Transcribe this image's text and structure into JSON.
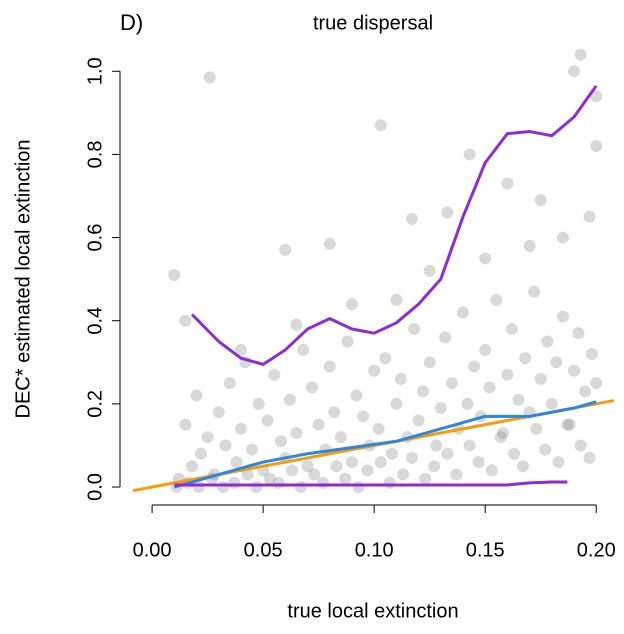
{
  "chart_data": {
    "type": "scatter",
    "panel_label": "D)",
    "title": "true dispersal",
    "x_label": "true local extinction",
    "y_label": "DEC* estimated local extinction",
    "xlim": [
      -0.0086,
      0.208
    ],
    "ylim": [
      -0.03,
      1.08
    ],
    "xticks": [
      {
        "value": 0,
        "label": "0.00"
      },
      {
        "value": 0.05,
        "label": "0.05"
      },
      {
        "value": 0.1,
        "label": "0.10"
      },
      {
        "value": 0.15,
        "label": "0.15"
      },
      {
        "value": 0.2,
        "label": "0.20"
      }
    ],
    "yticks": [
      {
        "value": 0,
        "label": "0.0"
      },
      {
        "value": 0.2,
        "label": "0.2"
      },
      {
        "value": 0.4,
        "label": "0.4"
      },
      {
        "value": 0.6,
        "label": "0.6"
      },
      {
        "value": 0.8,
        "label": "0.8"
      },
      {
        "value": 1,
        "label": "1.0"
      }
    ],
    "point_color": "#808080",
    "point_alpha": 0.3,
    "x": [
      0.012,
      0.015,
      0.018,
      0.02,
      0.022,
      0.025,
      0.028,
      0.03,
      0.033,
      0.035,
      0.038,
      0.04,
      0.042,
      0.045,
      0.048,
      0.05,
      0.052,
      0.055,
      0.058,
      0.06,
      0.062,
      0.065,
      0.068,
      0.07,
      0.072,
      0.075,
      0.078,
      0.08,
      0.082,
      0.085,
      0.088,
      0.09,
      0.092,
      0.095,
      0.098,
      0.1,
      0.102,
      0.105,
      0.108,
      0.11,
      0.112,
      0.115,
      0.118,
      0.12,
      0.122,
      0.125,
      0.128,
      0.13,
      0.132,
      0.135,
      0.138,
      0.14,
      0.142,
      0.145,
      0.148,
      0.15,
      0.152,
      0.155,
      0.158,
      0.16,
      0.162,
      0.165,
      0.168,
      0.17,
      0.172,
      0.175,
      0.178,
      0.18,
      0.182,
      0.185,
      0.188,
      0.19,
      0.192,
      0.195,
      0.198,
      0.2,
      0.011,
      0.016,
      0.021,
      0.027,
      0.032,
      0.037,
      0.043,
      0.047,
      0.053,
      0.057,
      0.063,
      0.067,
      0.073,
      0.077,
      0.083,
      0.087,
      0.093,
      0.097,
      0.103,
      0.107,
      0.113,
      0.117,
      0.123,
      0.127,
      0.133,
      0.137,
      0.143,
      0.147,
      0.153,
      0.157,
      0.163,
      0.167,
      0.173,
      0.177,
      0.183,
      0.187,
      0.193,
      0.197,
      0.026,
      0.103,
      0.143,
      0.19,
      0.193,
      0.2,
      0.2,
      0.01,
      0.06,
      0.08,
      0.117,
      0.16,
      0.175,
      0.133,
      0.197,
      0.015,
      0.04,
      0.065,
      0.09,
      0.11,
      0.125,
      0.15,
      0.17,
      0.185
    ],
    "values": [
      0.02,
      0.15,
      0.05,
      0.22,
      0.08,
      0.12,
      0.03,
      0.18,
      0.1,
      0.25,
      0.06,
      0.14,
      0.3,
      0.09,
      0.2,
      0.04,
      0.16,
      0.27,
      0.11,
      0.07,
      0.21,
      0.13,
      0.33,
      0.05,
      0.24,
      0.15,
      0.09,
      0.29,
      0.18,
      0.12,
      0.35,
      0.06,
      0.22,
      0.17,
      0.1,
      0.28,
      0.14,
      0.31,
      0.08,
      0.2,
      0.26,
      0.12,
      0.38,
      0.16,
      0.23,
      0.3,
      0.1,
      0.19,
      0.36,
      0.25,
      0.14,
      0.42,
      0.2,
      0.29,
      0.17,
      0.33,
      0.24,
      0.45,
      0.13,
      0.27,
      0.38,
      0.21,
      0.31,
      0.18,
      0.47,
      0.26,
      0.35,
      0.2,
      0.3,
      0.41,
      0.15,
      0.28,
      0.37,
      0.23,
      0.32,
      0.25,
      0.0,
      0.01,
      0.0,
      0.02,
      0.0,
      0.01,
      0.03,
      0.0,
      0.02,
      0.01,
      0.04,
      0.0,
      0.03,
      0.01,
      0.05,
      0.02,
      0.0,
      0.04,
      0.06,
      0.01,
      0.03,
      0.07,
      0.02,
      0.05,
      0.08,
      0.03,
      0.1,
      0.06,
      0.04,
      0.12,
      0.08,
      0.05,
      0.14,
      0.09,
      0.06,
      0.15,
      0.1,
      0.07,
      0.985,
      0.87,
      0.8,
      1.0,
      1.04,
      0.94,
      0.82,
      0.51,
      0.57,
      0.585,
      0.645,
      0.73,
      0.69,
      0.66,
      0.65,
      0.4,
      0.33,
      0.39,
      0.44,
      0.45,
      0.52,
      0.55,
      0.58,
      0.6
    ],
    "lines": [
      {
        "color": "#f39c12",
        "x": [
          -0.0086,
          0.208
        ],
        "values": [
          -0.0086,
          0.208
        ]
      },
      {
        "color": "#2e86de",
        "x": [
          0.01,
          0.03,
          0.05,
          0.07,
          0.09,
          0.11,
          0.13,
          0.15,
          0.17,
          0.19,
          0.2
        ],
        "values": [
          0.0,
          0.03,
          0.06,
          0.08,
          0.095,
          0.11,
          0.14,
          0.17,
          0.17,
          0.19,
          0.205
        ]
      },
      {
        "color": "#8e2bd6",
        "x": [
          0.018,
          0.03,
          0.04,
          0.05,
          0.06,
          0.07,
          0.08,
          0.09,
          0.1,
          0.11,
          0.12,
          0.13,
          0.14,
          0.15,
          0.16,
          0.17,
          0.18,
          0.19,
          0.2
        ],
        "values": [
          0.415,
          0.35,
          0.31,
          0.295,
          0.33,
          0.38,
          0.405,
          0.38,
          0.37,
          0.395,
          0.44,
          0.5,
          0.65,
          0.78,
          0.85,
          0.855,
          0.845,
          0.89,
          0.965
        ]
      },
      {
        "color": "#8e2bd6",
        "x": [
          0.01,
          0.05,
          0.1,
          0.15,
          0.16,
          0.17,
          0.18,
          0.187
        ],
        "values": [
          0.005,
          0.005,
          0.005,
          0.005,
          0.005,
          0.01,
          0.012,
          0.012
        ]
      }
    ]
  }
}
